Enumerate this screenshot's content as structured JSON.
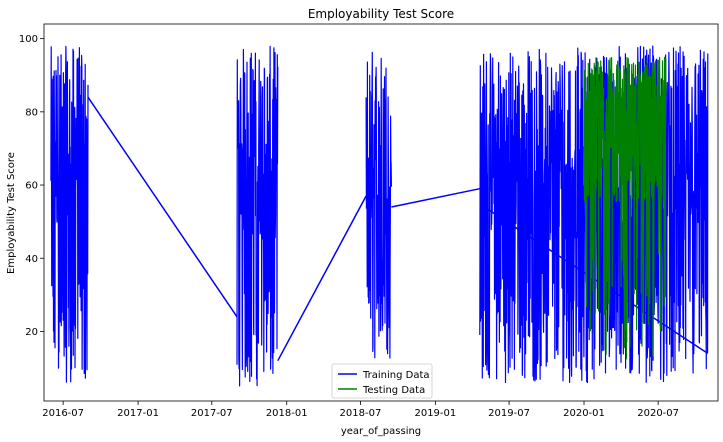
{
  "chart_data": {
    "type": "line",
    "title": "Employability Test Score",
    "xlabel": "year_of_passing",
    "ylabel": "Employability Test Score",
    "xlim": [
      "2016-05-15",
      "2020-11-25"
    ],
    "ylim": [
      1,
      104
    ],
    "x_tick_labels": [
      "2016-07",
      "2017-01",
      "2017-07",
      "2018-01",
      "2018-07",
      "2019-01",
      "2019-07",
      "2020-01",
      "2020-07"
    ],
    "y_tick_labels": [
      20,
      40,
      60,
      80,
      100
    ],
    "grid": false,
    "legend_position": "bottom-center",
    "series": [
      {
        "name": "Training Data",
        "color": "#0000ff",
        "clusters": [
          {
            "start": "2016-06-01",
            "end": "2016-08-31",
            "min": 6,
            "max": 98
          },
          {
            "start": "2017-09-01",
            "end": "2017-12-10",
            "min": 5,
            "max": 98
          },
          {
            "start": "2018-07-15",
            "end": "2018-09-15",
            "min": 12,
            "max": 98
          },
          {
            "start": "2019-04-20",
            "end": "2020-10-31",
            "min": 6,
            "max": 98
          }
        ],
        "connectors": [
          {
            "x": [
              "2016-08-31",
              "2017-09-01"
            ],
            "y": [
              84,
              24
            ]
          },
          {
            "x": [
              "2017-12-10",
              "2018-07-15"
            ],
            "y": [
              12,
              57
            ]
          },
          {
            "x": [
              "2018-09-15",
              "2019-04-20"
            ],
            "y": [
              54,
              59
            ]
          },
          {
            "x": [
              "2019-05-01",
              "2020-10-31"
            ],
            "y": [
              54,
              14
            ]
          }
        ]
      },
      {
        "name": "Testing Data",
        "color": "#008000",
        "clusters": [
          {
            "start": "2020-01-01",
            "end": "2020-07-20",
            "min": 12,
            "max": 95
          }
        ],
        "connectors": []
      }
    ]
  }
}
